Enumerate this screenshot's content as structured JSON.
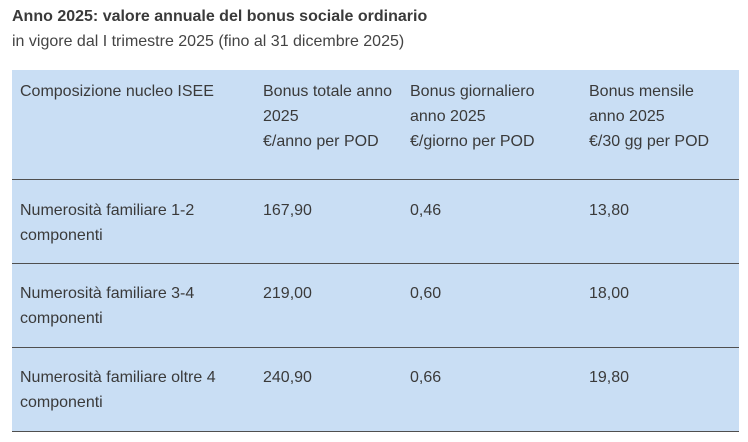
{
  "heading": {
    "title": "Anno 2025: valore annuale del bonus sociale ordinario",
    "subtitle": "in vigore dal I trimestre 2025 (fino al 31 dicembre 2025)"
  },
  "table": {
    "headers": [
      [
        "Composizione nucleo ISEE"
      ],
      [
        "Bonus totale anno",
        "2025",
        "€/anno per POD"
      ],
      [
        "Bonus giornaliero",
        "anno 2025",
        "€/giorno per POD"
      ],
      [
        "Bonus mensile",
        "anno 2025",
        "€/30 gg per POD"
      ]
    ],
    "rows": [
      {
        "composition": [
          "Numerosità familiare 1-2",
          "componenti"
        ],
        "annual": "167,90",
        "daily": "0,46",
        "monthly": "13,80"
      },
      {
        "composition": [
          "Numerosità familiare 3-4",
          "componenti"
        ],
        "annual": "219,00",
        "daily": "0,60",
        "monthly": "18,00"
      },
      {
        "composition": [
          "Numerosità familiare oltre 4",
          "componenti"
        ],
        "annual": "240,90",
        "daily": "0,66",
        "monthly": "19,80"
      }
    ]
  }
}
